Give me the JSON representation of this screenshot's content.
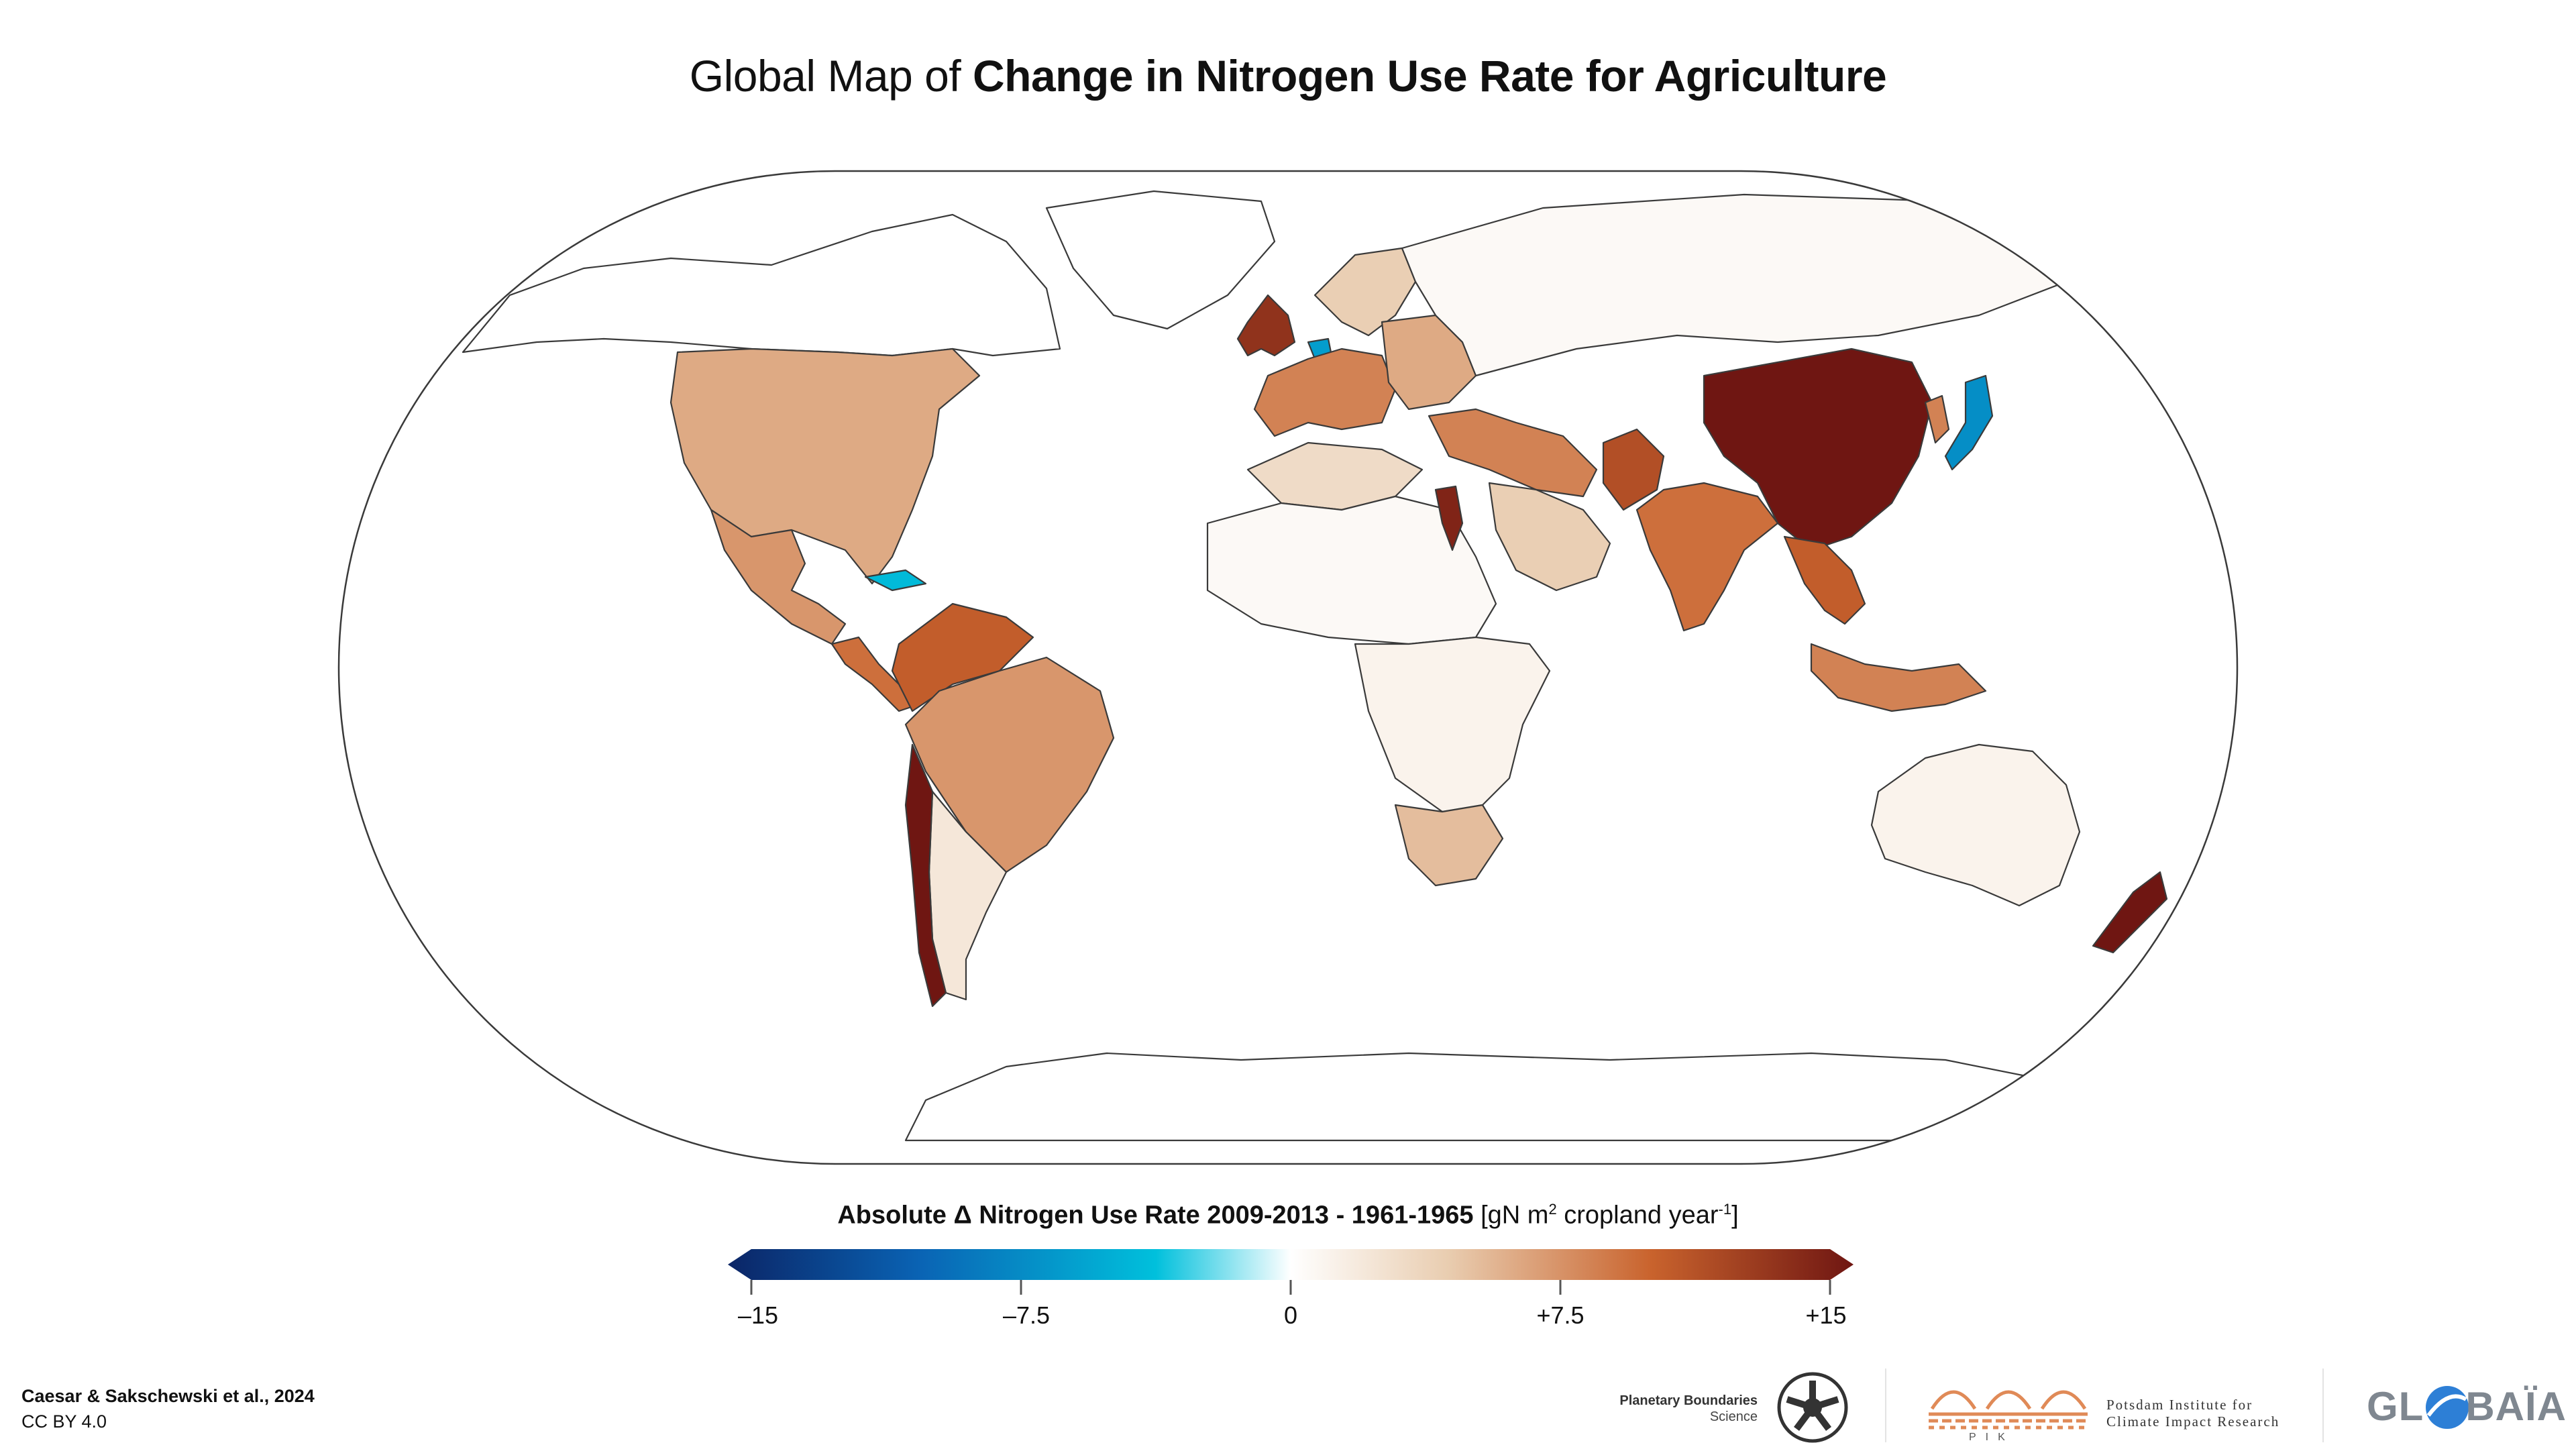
{
  "title": {
    "prefix": "Global Map of ",
    "emphasis": "Change in Nitrogen Use Rate for Agriculture"
  },
  "legend": {
    "title_bold": "Absolute Δ Nitrogen Use Rate 2009-2013 - 1961-1965",
    "unit_prefix": "[gN m",
    "unit_sup1": "2",
    "unit_mid": " cropland year",
    "unit_sup2": "-1",
    "unit_suffix": "]",
    "min": -15,
    "max": 15,
    "ticks": [
      "–15",
      "–7.5",
      "0",
      "+7.5",
      "+15"
    ],
    "colors": [
      "#0b2566",
      "#0a63b4",
      "#00c0dc",
      "#ffffff",
      "#e9cdb0",
      "#c9632d",
      "#6f1612"
    ]
  },
  "citation": {
    "authors": "Caesar & Sakschewski et al., 2024",
    "license": "CC BY 4.0"
  },
  "logos": {
    "pb_line1": "Planetary Boundaries",
    "pb_line2": "Science",
    "pik_line1": "Potsdam Institute for",
    "pik_line2": "Climate Impact Research",
    "pik_abbr": "PIK",
    "globaia_pre": "GL",
    "globaia_post": "BAÏA"
  },
  "map_regions": [
    {
      "name": "canada-arctic",
      "value": 0
    },
    {
      "name": "usa",
      "value": 6
    },
    {
      "name": "mexico",
      "value": 7
    },
    {
      "name": "central-america",
      "value": 9
    },
    {
      "name": "cuba",
      "value": -4
    },
    {
      "name": "colombia-venezuela",
      "value": 10
    },
    {
      "name": "brazil",
      "value": 7
    },
    {
      "name": "argentina",
      "value": 2
    },
    {
      "name": "chile",
      "value": 15
    },
    {
      "name": "greenland",
      "value": 0
    },
    {
      "name": "uk-ireland",
      "value": 13
    },
    {
      "name": "netherlands",
      "value": -6
    },
    {
      "name": "western-europe",
      "value": 8
    },
    {
      "name": "eastern-europe",
      "value": 6
    },
    {
      "name": "scandinavia",
      "value": 4
    },
    {
      "name": "russia",
      "value": 0.5
    },
    {
      "name": "turkey-middle-east",
      "value": 8
    },
    {
      "name": "egypt-nile",
      "value": 14
    },
    {
      "name": "north-africa",
      "value": 3
    },
    {
      "name": "sahara",
      "value": 0.5
    },
    {
      "name": "central-africa",
      "value": 1
    },
    {
      "name": "south-africa",
      "value": 5
    },
    {
      "name": "arabia",
      "value": 4
    },
    {
      "name": "pakistan",
      "value": 11
    },
    {
      "name": "india",
      "value": 9
    },
    {
      "name": "china",
      "value": 15
    },
    {
      "name": "korea",
      "value": 8
    },
    {
      "name": "japan",
      "value": -7
    },
    {
      "name": "southeast-asia",
      "value": 10
    },
    {
      "name": "indonesia",
      "value": 8
    },
    {
      "name": "australia",
      "value": 1
    },
    {
      "name": "new-zealand",
      "value": 15
    },
    {
      "name": "antarctica",
      "value": 0
    }
  ]
}
